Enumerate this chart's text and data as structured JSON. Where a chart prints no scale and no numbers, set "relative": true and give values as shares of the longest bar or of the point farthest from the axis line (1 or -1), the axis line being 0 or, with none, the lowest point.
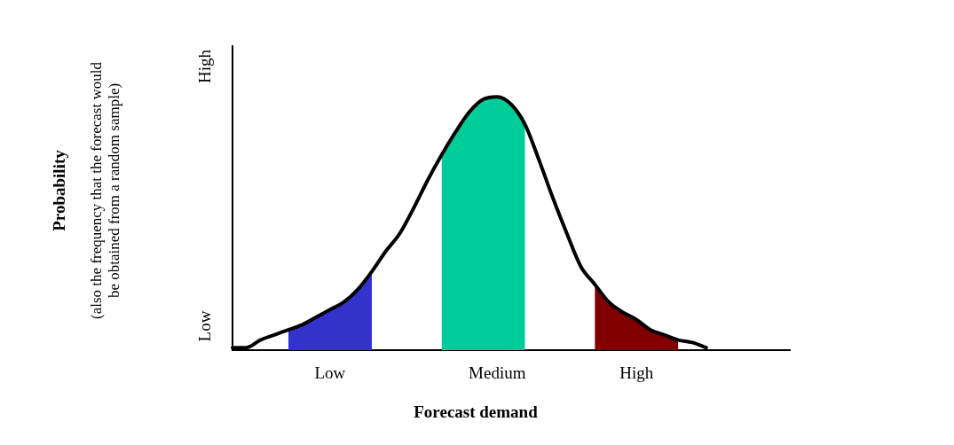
{
  "chart_data": {
    "type": "line",
    "relative": true,
    "xlabel": "Forecast demand",
    "annotations": [
      "High",
      "Low",
      "Probability",
      "(also the frequency that the forecast would be obtained from a random sample)"
    ],
    "categories": [
      null,
      null,
      null,
      null,
      null,
      null,
      null,
      "Low",
      null,
      null,
      null,
      null,
      null,
      null,
      null,
      null,
      null,
      null,
      null,
      "Medium",
      null,
      null,
      null,
      null,
      null,
      null,
      null,
      null,
      null,
      "High",
      null,
      null,
      null,
      null,
      null,
      null,
      null,
      null,
      null,
      null,
      null
    ],
    "grid": false,
    "series": [
      {
        "type": "area",
        "color": "#3333cc",
        "values": [
          null,
          null,
          null,
          null,
          0.08,
          0.1,
          0.13,
          0.16,
          0.19,
          0.24,
          0.31,
          null,
          null,
          null,
          null,
          null,
          null,
          null,
          null,
          null,
          null,
          null,
          null,
          null,
          null,
          null,
          null,
          null,
          null,
          null,
          null,
          null,
          null,
          null,
          null,
          null,
          null,
          null,
          null,
          null,
          null
        ]
      },
      {
        "type": "area",
        "color": "#00cc99",
        "values": [
          null,
          null,
          null,
          null,
          null,
          null,
          null,
          null,
          null,
          null,
          null,
          null,
          null,
          null,
          null,
          0.77,
          0.86,
          0.94,
          0.99,
          1,
          0.97,
          0.89,
          null,
          null,
          null,
          null,
          null,
          null,
          null,
          null,
          null,
          null,
          null,
          null,
          null,
          null,
          null,
          null,
          null,
          null,
          null
        ]
      },
      {
        "type": "area",
        "color": "#800000",
        "values": [
          null,
          null,
          null,
          null,
          null,
          null,
          null,
          null,
          null,
          null,
          null,
          null,
          null,
          null,
          null,
          null,
          null,
          null,
          null,
          null,
          null,
          null,
          null,
          null,
          null,
          null,
          0.26,
          0.19,
          0.15,
          0.12,
          0.08,
          0.06,
          0.04,
          null,
          null,
          null,
          null,
          null,
          null,
          null,
          null
        ]
      },
      {
        "type": "line",
        "color": "#000000",
        "values": [
          0.01,
          0.01,
          0.04,
          0.06,
          0.08,
          0.1,
          0.13,
          0.16,
          0.19,
          0.24,
          0.31,
          0.39,
          0.46,
          0.56,
          0.67,
          0.77,
          0.86,
          0.94,
          0.99,
          1,
          0.97,
          0.89,
          0.75,
          0.6,
          0.46,
          0.33,
          0.26,
          0.19,
          0.15,
          0.12,
          0.08,
          0.06,
          0.04,
          0.03,
          0.01,
          null,
          null,
          null,
          null,
          null,
          null
        ]
      }
    ]
  }
}
